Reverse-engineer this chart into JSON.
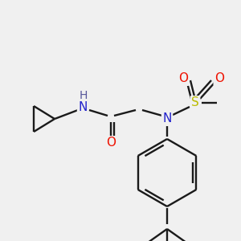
{
  "background_color": "#f0f0f0",
  "colors": {
    "bond": "#1a1a1a",
    "N": "#2222cc",
    "O": "#ee1100",
    "S": "#bbbb00",
    "F": "#cc00cc",
    "H": "#555599",
    "C": "#1a1a1a"
  },
  "figsize": [
    3.0,
    3.0
  ],
  "dpi": 100
}
